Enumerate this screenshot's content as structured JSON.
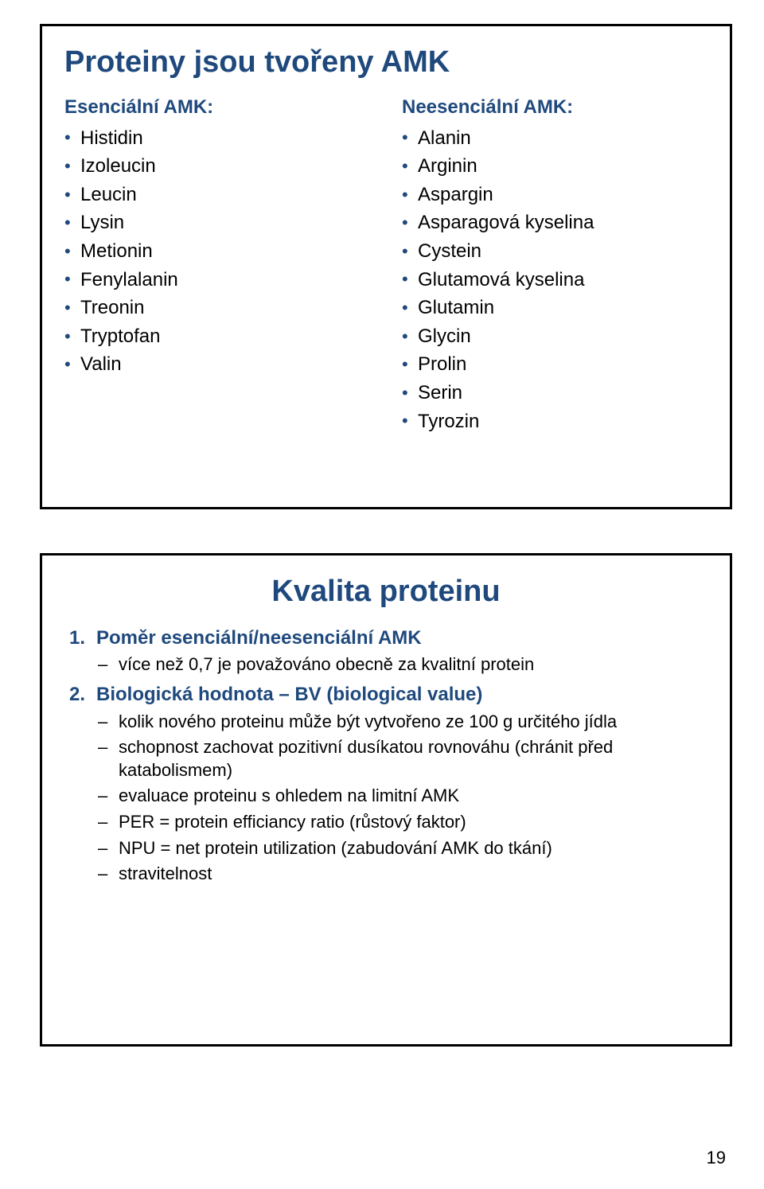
{
  "page_number": "19",
  "slide1": {
    "title": "Proteiny jsou tvořeny AMK",
    "left_header": "Esenciální AMK:",
    "left_items": [
      "Histidin",
      "Izoleucin",
      "Leucin",
      "Lysin",
      "Metionin",
      "Fenylalanin",
      "Treonin",
      "Tryptofan",
      "Valin"
    ],
    "right_header": "Neesenciální AMK:",
    "right_items": [
      "Alanin",
      "Arginin",
      "Aspargin",
      "Asparagová kyselina",
      "Cystein",
      "Glutamová kyselina",
      "Glutamin",
      "Glycin",
      "Prolin",
      "Serin",
      "Tyrozin"
    ]
  },
  "slide2": {
    "title": "Kvalita proteinu",
    "items": [
      {
        "num": "1.",
        "label": "Poměr esenciální/neesenciální AMK",
        "subs": [
          "více než 0,7 je považováno obecně za kvalitní protein"
        ]
      },
      {
        "num": "2.",
        "label": "Biologická hodnota – BV (biological value)",
        "subs": [
          "kolik nového proteinu může být vytvořeno ze 100 g určitého jídla",
          "schopnost zachovat pozitivní dusíkatou rovnováhu (chránit před katabolismem)",
          "evaluace proteinu s ohledem na limitní AMK",
          "PER = protein efficiancy ratio (růstový faktor)",
          "NPU = net protein utilization (zabudování AMK do tkání)",
          "stravitelnost"
        ]
      }
    ]
  },
  "colors": {
    "heading": "#1f497d",
    "border": "#000000",
    "text": "#000000",
    "background": "#ffffff"
  },
  "typography": {
    "title_size_pt": 28,
    "header_size_pt": 18,
    "body_size_pt": 18,
    "font_family": "Verdana"
  }
}
